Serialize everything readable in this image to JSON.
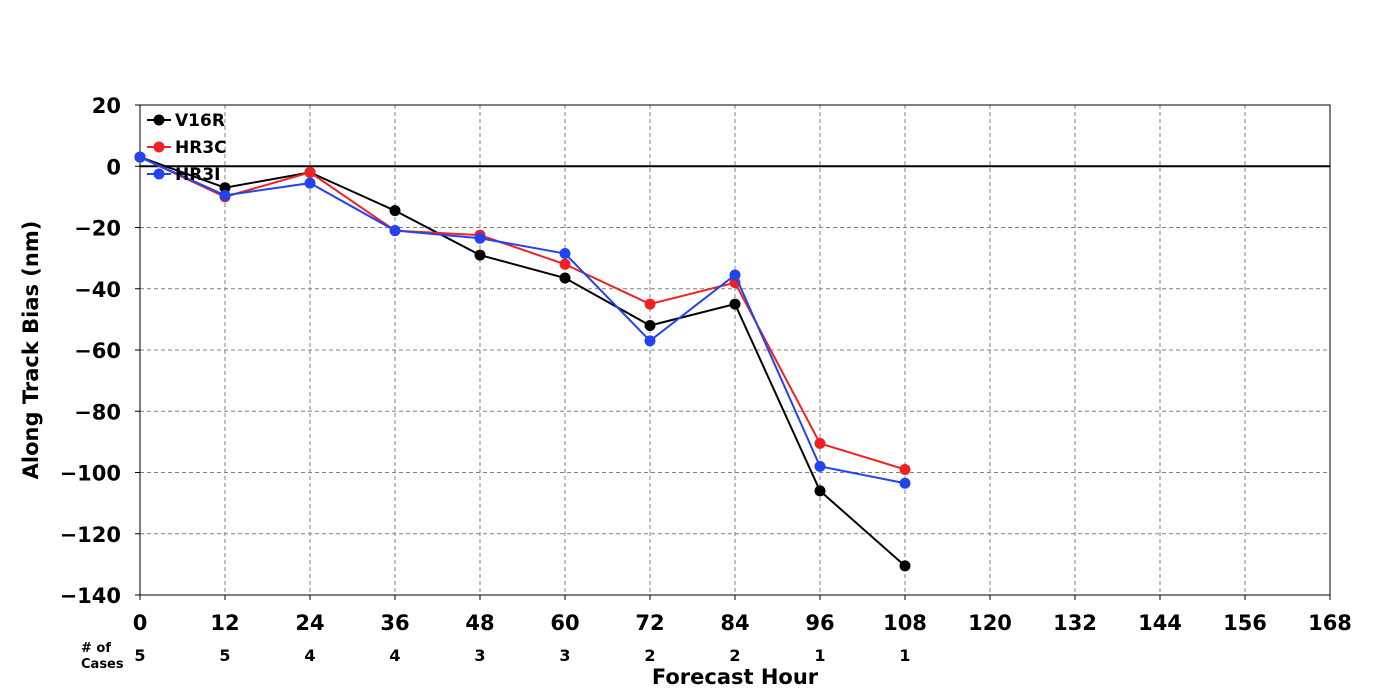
{
  "chart_data": {
    "type": "line",
    "title": "",
    "xlabel": "Forecast Hour",
    "ylabel": "Along Track Bias (nm)",
    "xlim": [
      0,
      168
    ],
    "ylim": [
      -140,
      20
    ],
    "xticks": [
      0,
      12,
      24,
      36,
      48,
      60,
      72,
      84,
      96,
      108,
      120,
      132,
      144,
      156,
      168
    ],
    "yticks": [
      20,
      0,
      -20,
      -40,
      -60,
      -80,
      -100,
      -120,
      -140
    ],
    "grid": true,
    "legend_position": "top-left",
    "zero_line": true,
    "cases_label": [
      "# of",
      "Cases"
    ],
    "cases": [
      {
        "x": 0,
        "n": "5"
      },
      {
        "x": 12,
        "n": "5"
      },
      {
        "x": 24,
        "n": "4"
      },
      {
        "x": 36,
        "n": "4"
      },
      {
        "x": 48,
        "n": "3"
      },
      {
        "x": 60,
        "n": "3"
      },
      {
        "x": 72,
        "n": "2"
      },
      {
        "x": 84,
        "n": "2"
      },
      {
        "x": 96,
        "n": "1"
      },
      {
        "x": 108,
        "n": "1"
      }
    ],
    "series": [
      {
        "name": "V16R",
        "color": "#000000",
        "x": [
          0,
          12,
          24,
          36,
          48,
          60,
          72,
          84,
          96,
          108
        ],
        "y": [
          3,
          -7,
          -2,
          -14.5,
          -29,
          -36.5,
          -52,
          -45,
          -106,
          -130.5
        ]
      },
      {
        "name": "HR3C",
        "color": "#ee2222",
        "x": [
          0,
          12,
          24,
          36,
          48,
          60,
          72,
          84,
          96,
          108
        ],
        "y": [
          3,
          -10,
          -2,
          -21,
          -22.5,
          -32,
          -45,
          -38,
          -90.5,
          -99
        ]
      },
      {
        "name": "HR3I",
        "color": "#2244ee",
        "x": [
          0,
          12,
          24,
          36,
          48,
          60,
          72,
          84,
          96,
          108
        ],
        "y": [
          3,
          -9.5,
          -5.5,
          -21,
          -23.5,
          -28.5,
          -57,
          -35.5,
          -98,
          -103.5
        ]
      }
    ]
  }
}
